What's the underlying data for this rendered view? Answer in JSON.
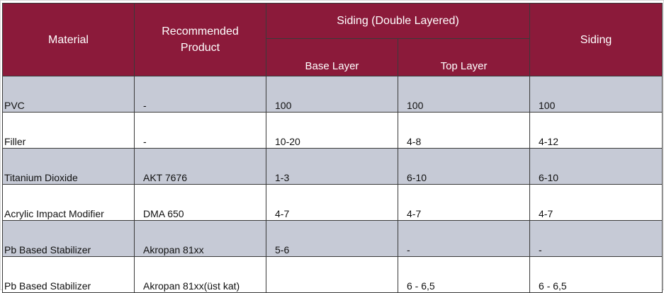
{
  "table": {
    "headers": {
      "material": "Material",
      "recommended_product": "Recommended\nProduct",
      "siding_double_layered": "Siding (Double Layered)",
      "base_layer": "Base Layer",
      "top_layer": "Top Layer",
      "siding": "Siding"
    },
    "rows": [
      {
        "material": "PVC",
        "product": "-",
        "base_layer": "100",
        "top_layer": "100",
        "siding": "100"
      },
      {
        "material": "Filler",
        "product": "-",
        "base_layer": "10-20",
        "top_layer": "4-8",
        "siding": "4-12"
      },
      {
        "material": "Titanium Dioxide",
        "product": "AKT 7676",
        "base_layer": "1-3",
        "top_layer": "6-10",
        "siding": "6-10"
      },
      {
        "material": "Acrylic Impact Modifier",
        "product": "DMA 650",
        "base_layer": "4-7",
        "top_layer": "4-7",
        "siding": "4-7"
      },
      {
        "material": "Pb Based Stabilizer",
        "product": "Akropan 81xx",
        "base_layer": "5-6",
        "top_layer": "-",
        "siding": "-"
      },
      {
        "material": "Pb Based Stabilizer",
        "product": "Akropan 81xx(üst kat)",
        "base_layer": "",
        "top_layer": "6 - 6,5",
        "siding": "6 - 6,5"
      }
    ]
  },
  "colors": {
    "header_bg": "#8b1a3a",
    "band_bg": "#c6cad6"
  }
}
